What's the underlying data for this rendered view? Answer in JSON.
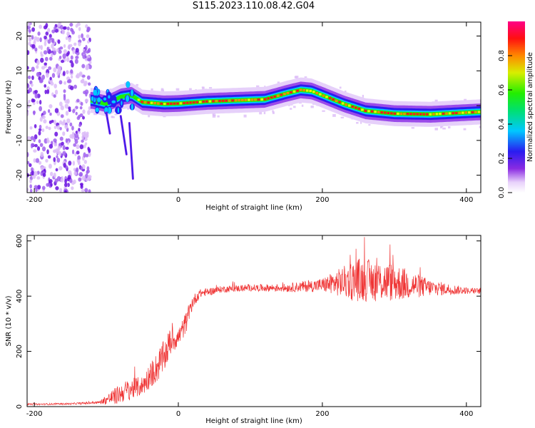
{
  "title": "S115.2023.110.08.42.G04",
  "colors": {
    "snr": "#ef3333",
    "axis": "#000000"
  },
  "chart_data": [
    {
      "type": "heatmap",
      "xlabel": "Height of straight line (km)",
      "ylabel": "Frequency (Hz)",
      "xlim": [
        -210,
        420
      ],
      "ylim": [
        -25,
        24
      ],
      "xticks": [
        -200,
        0,
        200,
        400
      ],
      "yticks": [
        -20,
        -10,
        0,
        10,
        20
      ],
      "colorbar": {
        "label": "Normalized spectral amplitude",
        "range": [
          0,
          1
        ],
        "ticks": [
          0.0,
          0.2,
          0.4,
          0.6,
          0.8
        ],
        "colormap": "rainbow (white-purple-blue-cyan-green-yellow-red-magenta)"
      },
      "ridge": {
        "x": [
          -120,
          -100,
          -80,
          -65,
          -50,
          -20,
          0,
          40,
          80,
          120,
          150,
          170,
          185,
          200,
          230,
          260,
          300,
          350,
          400,
          420
        ],
        "y": [
          1.5,
          0.5,
          2.5,
          3.0,
          1.0,
          0.5,
          0.6,
          1.2,
          1.5,
          1.8,
          3.5,
          4.5,
          4.2,
          3.0,
          0.5,
          -1.5,
          -2.3,
          -2.5,
          -2.0,
          -1.8
        ]
      },
      "noise_region_x": [
        -210,
        -130
      ]
    },
    {
      "type": "line",
      "xlabel": "Height of straight line (km)",
      "ylabel": "SNR (10 * v/v)",
      "xlim": [
        -210,
        420
      ],
      "ylim": [
        0,
        620
      ],
      "xticks": [
        -200,
        0,
        200,
        400
      ],
      "yticks": [
        0,
        200,
        400,
        600
      ],
      "series": [
        {
          "envelope_x": [
            -210,
            -150,
            -110,
            -90,
            -70,
            -50,
            -40,
            -30,
            -20,
            -10,
            0,
            10,
            20,
            30,
            60,
            100,
            150,
            200,
            250,
            300,
            350,
            400,
            420
          ],
          "envelope_y": [
            8,
            10,
            15,
            35,
            60,
            75,
            110,
            140,
            180,
            240,
            250,
            300,
            380,
            410,
            425,
            430,
            430,
            440,
            460,
            450,
            430,
            420,
            418
          ],
          "noise_amplitude": [
            3,
            3,
            5,
            30,
            40,
            35,
            45,
            55,
            60,
            50,
            35,
            40,
            25,
            15,
            12,
            12,
            15,
            25,
            80,
            70,
            30,
            12,
            10
          ]
        }
      ]
    }
  ]
}
